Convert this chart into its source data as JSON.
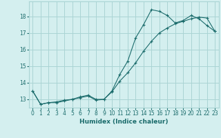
{
  "xlabel": "Humidex (Indice chaleur)",
  "background_color": "#d4efef",
  "grid_color": "#aad4d4",
  "line_color": "#1a6b6b",
  "series1_y": [
    13.5,
    12.7,
    12.8,
    12.8,
    12.9,
    13.0,
    13.15,
    13.25,
    13.0,
    13.0,
    13.5,
    14.5,
    15.3,
    16.7,
    17.5,
    18.4,
    18.3,
    18.05,
    17.6,
    17.75,
    18.05,
    17.85,
    17.45,
    17.1
  ],
  "series2_y": [
    13.5,
    12.7,
    12.8,
    12.85,
    12.95,
    13.0,
    13.1,
    13.2,
    12.95,
    13.0,
    13.45,
    14.1,
    14.6,
    15.2,
    15.9,
    16.5,
    17.0,
    17.3,
    17.55,
    17.7,
    17.85,
    17.95,
    17.9,
    17.1
  ],
  "ylim": [
    12.5,
    18.9
  ],
  "xlim": [
    -0.5,
    23.5
  ],
  "yticks": [
    13,
    14,
    15,
    16,
    17,
    18
  ],
  "xticks": [
    0,
    1,
    2,
    3,
    4,
    5,
    6,
    7,
    8,
    9,
    10,
    11,
    12,
    13,
    14,
    15,
    16,
    17,
    18,
    19,
    20,
    21,
    22,
    23
  ]
}
